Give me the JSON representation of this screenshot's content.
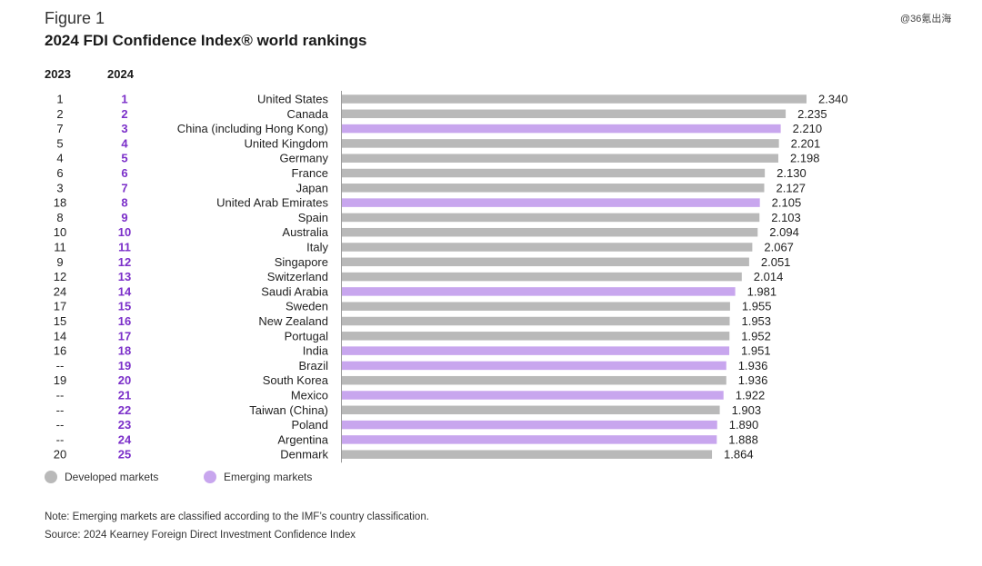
{
  "header": {
    "figure_label": "Figure 1",
    "title": "2024 FDI Confidence Index® world rankings",
    "watermark": "@36氪出海"
  },
  "columns": {
    "rank_2023": "2023",
    "rank_2024": "2024"
  },
  "legend": {
    "developed": "Developed markets",
    "emerging": "Emerging markets"
  },
  "colors": {
    "developed": "#b9b9b9",
    "emerging": "#c8a6ee",
    "rank_2024": "#7b2fc9",
    "axis": "#9a9a9a"
  },
  "footer": {
    "note": "Note: Emerging markets are classified according to the IMF’s country classification.",
    "source": "Source: 2024 Kearney Foreign Direct Investment Confidence Index"
  },
  "chart_data": {
    "type": "bar",
    "orientation": "horizontal",
    "categories": [
      "United States",
      "Canada",
      "China (including Hong Kong)",
      "United Kingdom",
      "Germany",
      "France",
      "Japan",
      "United Arab Emirates",
      "Spain",
      "Australia",
      "Italy",
      "Singapore",
      "Switzerland",
      "Saudi Arabia",
      "Sweden",
      "New Zealand",
      "Portugal",
      "India",
      "Brazil",
      "South Korea",
      "Mexico",
      "Taiwan (China)",
      "Poland",
      "Argentina",
      "Denmark"
    ],
    "values": [
      2.34,
      2.235,
      2.21,
      2.201,
      2.198,
      2.13,
      2.127,
      2.105,
      2.103,
      2.094,
      2.067,
      2.051,
      2.014,
      1.981,
      1.955,
      1.953,
      1.952,
      1.951,
      1.936,
      1.936,
      1.922,
      1.903,
      1.89,
      1.888,
      1.864
    ],
    "value_labels": [
      "2.340",
      "2.235",
      "2.210",
      "2.201",
      "2.198",
      "2.130",
      "2.127",
      "2.105",
      "2.103",
      "2.094",
      "2.067",
      "2.051",
      "2.014",
      "1.981",
      "1.955",
      "1.953",
      "1.952",
      "1.951",
      "1.936",
      "1.936",
      "1.922",
      "1.903",
      "1.890",
      "1.888",
      "1.864"
    ],
    "rank_2023": [
      "1",
      "2",
      "7",
      "5",
      "4",
      "6",
      "3",
      "18",
      "8",
      "10",
      "11",
      "9",
      "12",
      "24",
      "17",
      "15",
      "14",
      "16",
      "--",
      "19",
      "--",
      "--",
      "--",
      "--",
      "20"
    ],
    "rank_2024": [
      "1",
      "2",
      "3",
      "4",
      "5",
      "6",
      "7",
      "8",
      "9",
      "10",
      "11",
      "12",
      "13",
      "14",
      "15",
      "16",
      "17",
      "18",
      "19",
      "20",
      "21",
      "22",
      "23",
      "24",
      "25"
    ],
    "market_type": [
      "developed",
      "developed",
      "emerging",
      "developed",
      "developed",
      "developed",
      "developed",
      "emerging",
      "developed",
      "developed",
      "developed",
      "developed",
      "developed",
      "emerging",
      "developed",
      "developed",
      "developed",
      "emerging",
      "emerging",
      "developed",
      "emerging",
      "developed",
      "emerging",
      "emerging",
      "developed"
    ],
    "xlim": [
      0,
      2.34
    ],
    "grid": false
  }
}
